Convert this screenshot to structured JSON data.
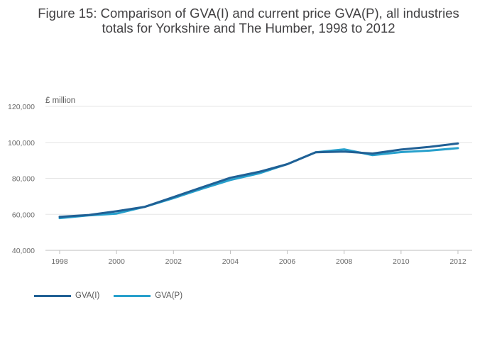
{
  "title": {
    "line1": "Figure 15: Comparison of GVA(I) and current price GVA(P), all industries",
    "line2": "totals for Yorkshire and The Humber, 1998 to 2012"
  },
  "chart_data": {
    "type": "line",
    "title": "Figure 15: Comparison of GVA(I) and current price GVA(P), all industries totals for Yorkshire and The Humber, 1998 to 2012",
    "ylabel": "£ million",
    "x": [
      1998,
      1999,
      2000,
      2001,
      2002,
      2003,
      2004,
      2005,
      2006,
      2007,
      2008,
      2009,
      2010,
      2011,
      2012
    ],
    "xticks": [
      "1998",
      "2000",
      "2002",
      "2004",
      "2006",
      "2008",
      "2010",
      "2012"
    ],
    "yticks": [
      "40,000",
      "60,000",
      "80,000",
      "100,000",
      "120,000"
    ],
    "ylim": [
      40000,
      120000
    ],
    "xlim": [
      1998,
      2012
    ],
    "grid": true,
    "legend_position": "bottom-left",
    "series": [
      {
        "name": "GVA(I)",
        "color": "#206095",
        "values": [
          58600,
          59600,
          61700,
          64200,
          69600,
          75000,
          80300,
          83600,
          87900,
          94500,
          94900,
          93800,
          96000,
          97500,
          99400
        ]
      },
      {
        "name": "GVA(P)",
        "color": "#27A0CC",
        "values": [
          57900,
          59400,
          60400,
          64200,
          69000,
          74200,
          79100,
          82700,
          87900,
          94500,
          96100,
          92900,
          94600,
          95400,
          96800
        ]
      }
    ]
  }
}
